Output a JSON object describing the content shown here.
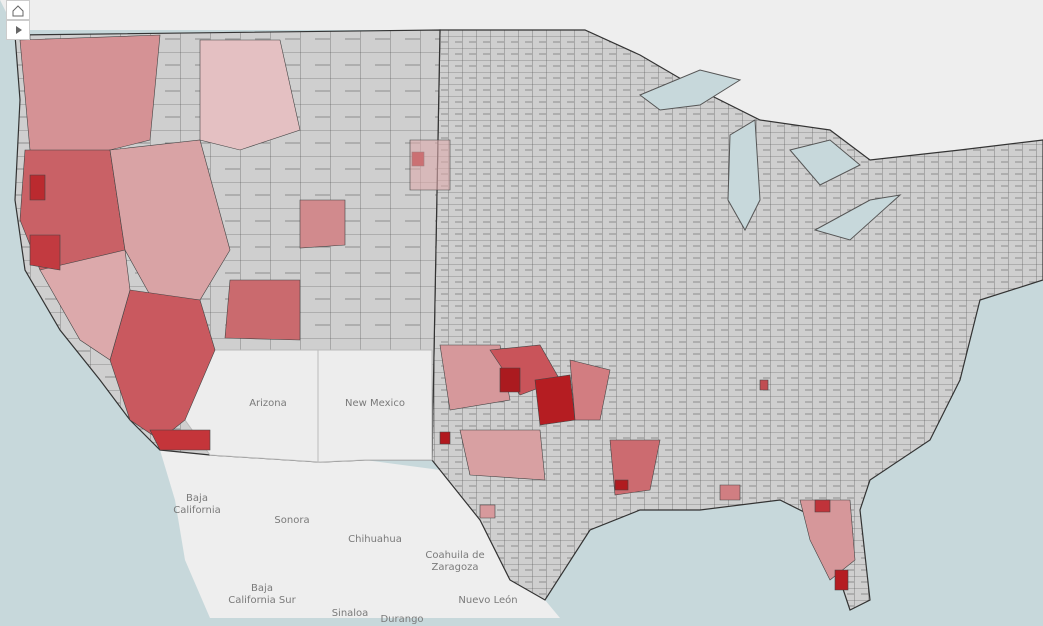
{
  "map": {
    "labels": [
      "Arizona",
      "New Mexico",
      "Baja California",
      "Sonora",
      "Chihuahua",
      "Coahuila de Zaragoza",
      "Nuevo León",
      "Baja California Sur",
      "Sinaloa",
      "Durango"
    ]
  }
}
